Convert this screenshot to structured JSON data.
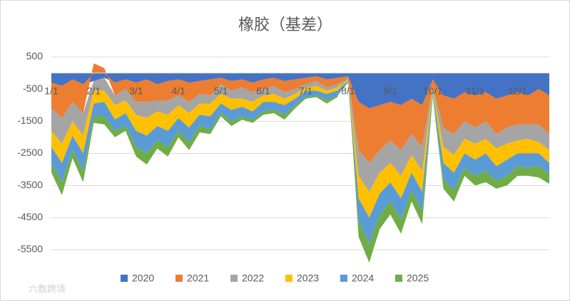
{
  "chart_data": {
    "type": "stacked_area",
    "title": "橡胶（基差）",
    "watermark": "六数跨境",
    "categories": [
      "1/1",
      null,
      null,
      null,
      "2/1",
      null,
      null,
      null,
      "3/1",
      null,
      null,
      null,
      "4/1",
      null,
      null,
      null,
      "5/1",
      null,
      null,
      null,
      "6/1",
      null,
      null,
      null,
      "7/1",
      null,
      null,
      null,
      "8/1",
      null,
      null,
      null,
      "9/1",
      null,
      null,
      null,
      "10/1",
      null,
      null,
      null,
      "11/1",
      null,
      null,
      null,
      "12/1",
      null,
      null,
      null
    ],
    "ylim": [
      -5500,
      500
    ],
    "yticks": [
      500,
      -500,
      -1500,
      -2500,
      -3500,
      -4500,
      -5500
    ],
    "grid": true,
    "legend": "bottom",
    "series": [
      {
        "name": "2020",
        "color": "#4472c4",
        "values": [
          -300,
          -400,
          -200,
          -350,
          -250,
          -150,
          -300,
          -200,
          -300,
          -200,
          -350,
          -250,
          -200,
          -300,
          -250,
          -200,
          -150,
          -250,
          -200,
          -300,
          -200,
          -150,
          -250,
          -200,
          -150,
          -100,
          -200,
          -150,
          -100,
          -900,
          -1100,
          -1000,
          -900,
          -1000,
          -800,
          -1000,
          -200,
          -700,
          -800,
          -600,
          -700,
          -600,
          -800,
          -700,
          -600,
          -700,
          -500,
          -700
        ]
      },
      {
        "name": "2021",
        "color": "#ed7d31",
        "values": [
          -800,
          -1000,
          -700,
          -900,
          300,
          150,
          -400,
          -300,
          -600,
          -700,
          -500,
          -600,
          -500,
          -600,
          -400,
          -500,
          -200,
          -300,
          -250,
          -300,
          -300,
          -250,
          -350,
          -300,
          -200,
          -150,
          -250,
          -200,
          -50,
          -1500,
          -1700,
          -1400,
          -1200,
          -1400,
          -1100,
          -1300,
          -200,
          -1000,
          -1100,
          -900,
          -1000,
          -900,
          -1100,
          -1000,
          -1000,
          -900,
          -1100,
          -1200
        ]
      },
      {
        "name": "2022",
        "color": "#a5a5a5",
        "values": [
          -700,
          -800,
          -600,
          -700,
          -300,
          -400,
          -300,
          -350,
          -400,
          -500,
          -350,
          -450,
          -300,
          -350,
          -300,
          -250,
          -300,
          -250,
          -350,
          -300,
          -200,
          -250,
          -200,
          -150,
          -100,
          -150,
          -100,
          -100,
          -50,
          -800,
          -900,
          -700,
          -700,
          -800,
          -650,
          -750,
          -100,
          -600,
          -650,
          -550,
          -500,
          -550,
          -450,
          -500,
          -500,
          -450,
          -550,
          -500
        ]
      },
      {
        "name": "2023",
        "color": "#ffc000",
        "values": [
          -500,
          -600,
          -450,
          -550,
          -400,
          -350,
          -450,
          -400,
          -500,
          -550,
          -450,
          -500,
          -400,
          -450,
          -350,
          -400,
          -300,
          -350,
          -250,
          -300,
          -200,
          -250,
          -200,
          -150,
          -100,
          -150,
          -100,
          -100,
          -50,
          -700,
          -800,
          -650,
          -600,
          -700,
          -550,
          -650,
          -100,
          -500,
          -550,
          -450,
          -500,
          -450,
          -550,
          -500,
          -400,
          -450,
          -350,
          -400
        ]
      },
      {
        "name": "2024",
        "color": "#5b9bd5",
        "values": [
          -500,
          -600,
          -450,
          -550,
          -400,
          -450,
          -350,
          -400,
          -500,
          -550,
          -450,
          -500,
          -400,
          -450,
          -350,
          -400,
          -300,
          -350,
          -300,
          -250,
          -300,
          -250,
          -300,
          -200,
          -200,
          -150,
          -200,
          -150,
          -50,
          -700,
          -800,
          -650,
          -600,
          -650,
          -550,
          -600,
          -100,
          -500,
          -550,
          -450,
          -500,
          -550,
          -450,
          -500,
          -400,
          -450,
          -400,
          -350
        ]
      },
      {
        "name": "2025",
        "color": "#70ad47",
        "values": [
          -300,
          -400,
          -250,
          -350,
          -200,
          -250,
          -200,
          -150,
          -300,
          -350,
          -250,
          -300,
          -200,
          -250,
          -200,
          -150,
          -100,
          -150,
          -100,
          -100,
          -100,
          -100,
          -150,
          -100,
          -50,
          -50,
          -100,
          -50,
          0,
          -500,
          -600,
          -450,
          -400,
          -450,
          -350,
          -400,
          -50,
          -300,
          -350,
          -250,
          -300,
          -350,
          -250,
          -300,
          -300,
          -250,
          -350,
          -300
        ]
      }
    ]
  }
}
